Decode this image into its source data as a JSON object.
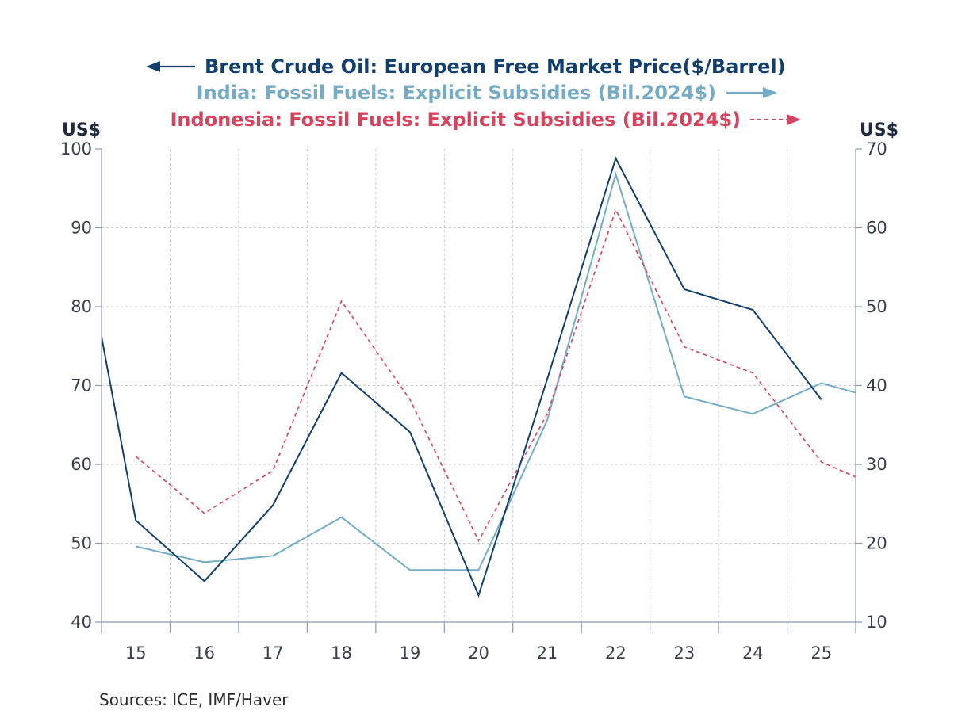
{
  "chart_data": {
    "type": "line",
    "categories": [
      "15",
      "16",
      "17",
      "18",
      "19",
      "20",
      "21",
      "22",
      "23",
      "24",
      "25"
    ],
    "left_axis": {
      "unit": "US$",
      "ylim": [
        40,
        100
      ],
      "ticks": [
        "100",
        "90",
        "80",
        "70",
        "60",
        "50",
        "40"
      ]
    },
    "right_axis": {
      "unit": "US$",
      "ylim": [
        10,
        70
      ],
      "ticks": [
        "70",
        "60",
        "50",
        "40",
        "30",
        "20",
        "10"
      ]
    },
    "series": [
      {
        "name": "Brent Crude Oil: European Free Market Price($/Barrel)",
        "axis": "left",
        "color": "#133f6e",
        "style": "solid",
        "x": [
          14.5,
          15,
          16,
          17,
          18,
          19,
          20,
          21,
          22,
          23,
          24,
          25
        ],
        "values": [
          76.2,
          52.9,
          45.2,
          54.8,
          71.6,
          64.1,
          43.4,
          70.8,
          98.8,
          82.2,
          79.6,
          68.2
        ]
      },
      {
        "name": "India: Fossil Fuels: Explicit Subsidies (Bil.2024$)",
        "axis": "right",
        "color": "#74acc5",
        "style": "solid",
        "x": [
          15,
          16,
          17,
          18,
          19,
          20,
          21,
          22,
          23,
          24,
          25,
          25.5
        ],
        "values": [
          19.6,
          17.6,
          18.4,
          23.3,
          16.6,
          16.6,
          35.6,
          66.8,
          38.6,
          36.4,
          40.3,
          39.1
        ]
      },
      {
        "name": "Indonesia: Fossil Fuels: Explicit Subsidies (Bil.2024$)",
        "axis": "right",
        "color": "#d5435f",
        "style": "dashed",
        "x": [
          15,
          16,
          17,
          18,
          19,
          20,
          21,
          22,
          23,
          24,
          25,
          25.5
        ],
        "values": [
          31.0,
          23.8,
          29.2,
          50.7,
          38.2,
          20.3,
          36.4,
          62.3,
          44.9,
          41.6,
          30.3,
          28.4
        ]
      }
    ],
    "grid": true,
    "source": "Sources:  ICE, IMF/Haver"
  }
}
